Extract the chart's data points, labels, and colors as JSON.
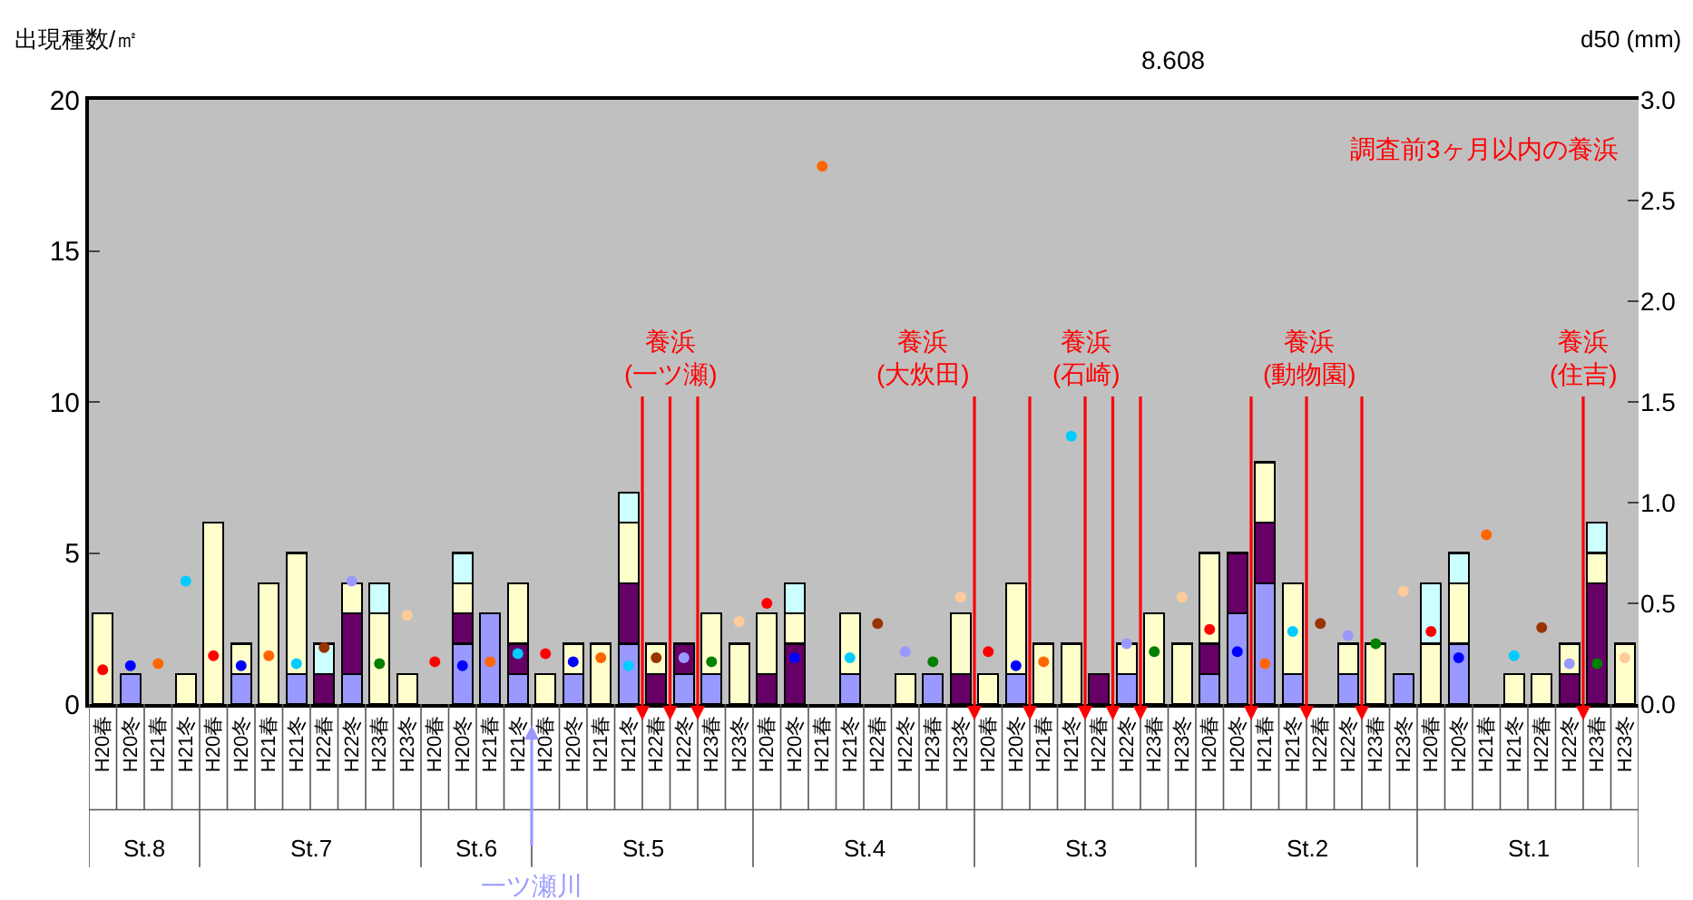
{
  "chart_data": {
    "type": "bar",
    "stacked": true,
    "marker": "circle",
    "ylabel": "出現種数/㎡",
    "y2label": "d50 (mm)",
    "categories": [
      "H20春",
      "H20冬",
      "H21春",
      "H21冬",
      "H20春",
      "H20冬",
      "H21春",
      "H21冬",
      "H22春",
      "H22冬",
      "H23春",
      "H23冬",
      "H20春",
      "H20冬",
      "H21春",
      "H21冬",
      "H20春",
      "H20冬",
      "H21春",
      "H21冬",
      "H22春",
      "H22冬",
      "H23春",
      "H23冬",
      "H20春",
      "H20冬",
      "H21春",
      "H21冬",
      "H22春",
      "H22冬",
      "H23春",
      "H23冬",
      "H20春",
      "H20冬",
      "H21春",
      "H21冬",
      "H22春",
      "H22冬",
      "H23春",
      "H23冬",
      "H20春",
      "H20冬",
      "H21春",
      "H21冬",
      "H22春",
      "H22冬",
      "H23春",
      "H23冬",
      "H20春",
      "H20冬",
      "H21春",
      "H21冬",
      "H22春",
      "H22冬",
      "H23春",
      "H23冬"
    ],
    "ylim": [
      0,
      20
    ],
    "yticks": [
      0,
      5,
      10,
      15,
      20
    ],
    "y2lim": [
      0,
      3
    ],
    "y2ticks": [
      {
        "value": 0,
        "label": "0.0"
      },
      {
        "value": 0.5,
        "label": "0.5"
      },
      {
        "value": 1,
        "label": "1.0"
      },
      {
        "value": 1.5,
        "label": "1.5"
      },
      {
        "value": 2,
        "label": "2.0"
      },
      {
        "value": 2.5,
        "label": "2.5"
      },
      {
        "value": 3,
        "label": "3.0"
      }
    ],
    "series": [
      {
        "color": "#9999ff",
        "values": [
          0,
          1,
          0,
          0,
          0,
          1,
          0,
          1,
          0,
          1,
          0,
          0,
          0,
          2,
          3,
          1,
          0,
          1,
          0,
          2,
          0,
          1,
          1,
          0,
          0,
          0,
          0,
          1,
          0,
          0,
          1,
          0,
          0,
          1,
          0,
          0,
          0,
          1,
          0,
          0,
          1,
          3,
          4,
          1,
          0,
          1,
          0,
          1,
          0,
          2,
          0,
          0,
          0,
          0,
          0,
          0
        ]
      },
      {
        "color": "#660066",
        "values": [
          0,
          0,
          0,
          0,
          0,
          0,
          0,
          0,
          1,
          2,
          0,
          0,
          0,
          1,
          0,
          1,
          0,
          0,
          0,
          2,
          1,
          1,
          0,
          0,
          1,
          2,
          0,
          0,
          0,
          0,
          0,
          1,
          0,
          0,
          0,
          0,
          1,
          0,
          0,
          0,
          1,
          2,
          2,
          0,
          0,
          0,
          0,
          0,
          0,
          0,
          0,
          0,
          0,
          1,
          4,
          0
        ]
      },
      {
        "color": "#ffffcc",
        "values": [
          3,
          0,
          0,
          1,
          6,
          1,
          4,
          4,
          0,
          1,
          3,
          1,
          0,
          1,
          0,
          2,
          1,
          1,
          2,
          2,
          1,
          0,
          2,
          2,
          2,
          1,
          0,
          2,
          0,
          1,
          0,
          2,
          1,
          3,
          2,
          2,
          0,
          1,
          3,
          2,
          3,
          0,
          2,
          3,
          0,
          1,
          2,
          0,
          2,
          2,
          0,
          1,
          1,
          1,
          1,
          2
        ]
      },
      {
        "color": "#ccffff",
        "values": [
          0,
          0,
          0,
          0,
          0,
          0,
          0,
          0,
          1,
          0,
          1,
          0,
          0,
          1,
          0,
          0,
          0,
          0,
          0,
          1,
          0,
          0,
          0,
          0,
          0,
          1,
          0,
          0,
          0,
          0,
          0,
          0,
          0,
          0,
          0,
          0,
          0,
          0,
          0,
          0,
          0,
          0,
          0,
          0,
          0,
          0,
          0,
          0,
          2,
          1,
          0,
          0,
          0,
          0,
          1,
          0
        ]
      },
      {
        "type": "scatter",
        "axis": "y2",
        "values": [
          0.17,
          0.19,
          0.2,
          0.61,
          0.24,
          0.19,
          0.24,
          0.2,
          0.28,
          0.61,
          0.2,
          0.44,
          0.21,
          0.19,
          0.21,
          0.25,
          0.25,
          0.21,
          0.23,
          0.19,
          0.23,
          0.23,
          0.21,
          0.41,
          0.5,
          0.23,
          2.67,
          0.23,
          0.4,
          0.26,
          0.21,
          0.53,
          0.26,
          0.19,
          0.21,
          1.33,
          null,
          0.3,
          0.26,
          0.53,
          0.37,
          0.26,
          0.2,
          0.36,
          0.4,
          0.34,
          0.3,
          0.56,
          0.36,
          0.23,
          0.84,
          0.24,
          0.38,
          0.2,
          0.2,
          0.23
        ],
        "colors": [
          "#ff0000",
          "#0000ff",
          "#ff6600",
          "#00ccff",
          "#ff0000",
          "#0000ff",
          "#ff6600",
          "#00ccff",
          "#993300",
          "#9999ff",
          "#008000",
          "#ffcc99",
          "#ff0000",
          "#0000ff",
          "#ff6600",
          "#00ccff",
          "#ff0000",
          "#0000ff",
          "#ff6600",
          "#00ccff",
          "#993300",
          "#9999ff",
          "#008000",
          "#ffcc99",
          "#ff0000",
          "#0000ff",
          "#ff6600",
          "#00ccff",
          "#993300",
          "#9999ff",
          "#008000",
          "#ffcc99",
          "#ff0000",
          "#0000ff",
          "#ff6600",
          "#00ccff",
          "#993300",
          "#9999ff",
          "#008000",
          "#ffcc99",
          "#ff0000",
          "#0000ff",
          "#ff6600",
          "#00ccff",
          "#993300",
          "#9999ff",
          "#008000",
          "#ffcc99",
          "#ff0000",
          "#0000ff",
          "#ff6600",
          "#00ccff",
          "#993300",
          "#9999ff",
          "#008000",
          "#ffcc99"
        ]
      }
    ],
    "annotations": [
      "調査前3ヶ月以内の養浜",
      "養浜\n(一ツ瀬)",
      "養浜\n(大炊田)",
      "養浜\n(石崎)",
      "養浜\n(動物園)",
      "養浜\n(住吉)",
      "8.608",
      "一ツ瀬川",
      "St.8",
      "St.7",
      "St.6",
      "St.5",
      "St.4",
      "St.3",
      "St.2",
      "St.1"
    ]
  }
}
